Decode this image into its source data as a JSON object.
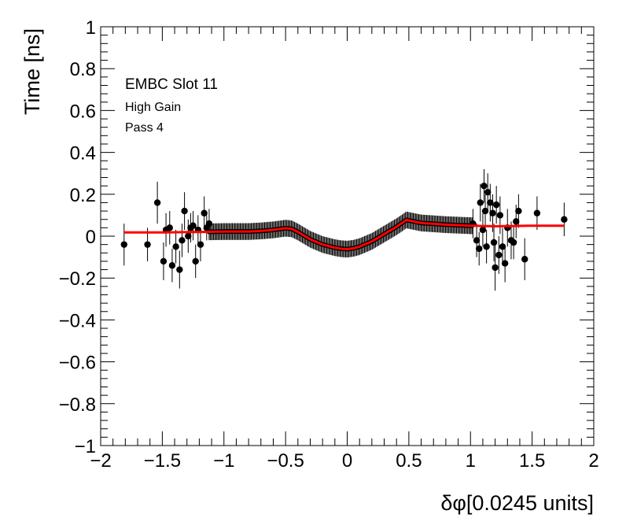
{
  "chart_data": {
    "type": "scatter",
    "xlabel": "δφ[0.0245 units]",
    "ylabel": "Time [ns]",
    "xlim": [
      -2,
      2
    ],
    "ylim": [
      -1,
      1
    ],
    "x_ticks": [
      "−2",
      "−1.5",
      "−1",
      "−0.5",
      "0",
      "0.5",
      "1",
      "1.5",
      "2"
    ],
    "y_ticks": [
      "−1",
      "−0.8",
      "−0.6",
      "−0.4",
      "−0.2",
      "0",
      "0.2",
      "0.4",
      "0.6",
      "0.8",
      "1"
    ],
    "annotations": [
      "EMBC Slot 11",
      "High Gain",
      "Pass 4"
    ],
    "grid": false,
    "legend": "none",
    "colors": {
      "points": "#000000",
      "fit": "#ff0000"
    },
    "series": [
      {
        "kind": "points",
        "points": [
          {
            "x": -1.81,
            "y": -0.04,
            "err": 0.1
          },
          {
            "x": -1.62,
            "y": -0.04,
            "err": 0.08
          },
          {
            "x": -1.54,
            "y": 0.16,
            "err": 0.1
          },
          {
            "x": -1.49,
            "y": -0.12,
            "err": 0.09
          },
          {
            "x": -1.47,
            "y": 0.03,
            "err": 0.08
          },
          {
            "x": -1.44,
            "y": 0.04,
            "err": 0.08
          },
          {
            "x": -1.42,
            "y": -0.14,
            "err": 0.08
          },
          {
            "x": -1.39,
            "y": -0.05,
            "err": 0.08
          },
          {
            "x": -1.36,
            "y": -0.16,
            "err": 0.09
          },
          {
            "x": -1.34,
            "y": -0.02,
            "err": 0.08
          },
          {
            "x": -1.32,
            "y": 0.12,
            "err": 0.09
          },
          {
            "x": -1.29,
            "y": 0.0,
            "err": 0.08
          },
          {
            "x": -1.27,
            "y": 0.04,
            "err": 0.07
          },
          {
            "x": -1.25,
            "y": 0.05,
            "err": 0.07
          },
          {
            "x": -1.23,
            "y": -0.12,
            "err": 0.08
          },
          {
            "x": -1.21,
            "y": 0.03,
            "err": 0.07
          },
          {
            "x": -1.19,
            "y": -0.04,
            "err": 0.08
          },
          {
            "x": -1.16,
            "y": 0.11,
            "err": 0.08
          },
          {
            "x": -1.14,
            "y": 0.04,
            "err": 0.06
          },
          {
            "x": -1.12,
            "y": 0.06,
            "err": 0.07
          },
          {
            "x": 1.02,
            "y": 0.06,
            "err": 0.07
          },
          {
            "x": 1.05,
            "y": -0.02,
            "err": 0.08
          },
          {
            "x": 1.07,
            "y": -0.06,
            "err": 0.08
          },
          {
            "x": 1.08,
            "y": 0.16,
            "err": 0.09
          },
          {
            "x": 1.1,
            "y": 0.03,
            "err": 0.08
          },
          {
            "x": 1.11,
            "y": 0.24,
            "err": 0.08
          },
          {
            "x": 1.12,
            "y": 0.12,
            "err": 0.08
          },
          {
            "x": 1.13,
            "y": -0.05,
            "err": 0.08
          },
          {
            "x": 1.14,
            "y": 0.21,
            "err": 0.09
          },
          {
            "x": 1.16,
            "y": 0.16,
            "err": 0.09
          },
          {
            "x": 1.18,
            "y": 0.11,
            "err": 0.09
          },
          {
            "x": 1.19,
            "y": -0.03,
            "err": 0.09
          },
          {
            "x": 1.2,
            "y": -0.15,
            "err": 0.11
          },
          {
            "x": 1.21,
            "y": 0.15,
            "err": 0.09
          },
          {
            "x": 1.23,
            "y": -0.09,
            "err": 0.09
          },
          {
            "x": 1.24,
            "y": 0.1,
            "err": 0.09
          },
          {
            "x": 1.26,
            "y": -0.05,
            "err": 0.09
          },
          {
            "x": 1.28,
            "y": -0.13,
            "err": 0.09
          },
          {
            "x": 1.3,
            "y": 0.04,
            "err": 0.09
          },
          {
            "x": 1.33,
            "y": -0.02,
            "err": 0.09
          },
          {
            "x": 1.35,
            "y": -0.03,
            "err": 0.08
          },
          {
            "x": 1.37,
            "y": 0.07,
            "err": 0.08
          },
          {
            "x": 1.39,
            "y": 0.12,
            "err": 0.08
          },
          {
            "x": 1.44,
            "y": -0.11,
            "err": 0.1
          },
          {
            "x": 1.54,
            "y": 0.11,
            "err": 0.08
          },
          {
            "x": 1.76,
            "y": 0.08,
            "err": 0.08
          }
        ]
      },
      {
        "kind": "dense-band",
        "x_range": [
          -1.12,
          1.02
        ],
        "x_step": 0.009,
        "err": 0.04
      },
      {
        "kind": "fit-curve",
        "x": [
          -1.81,
          -1.5,
          -1.2,
          -1.0,
          -0.8,
          -0.7,
          -0.6,
          -0.5,
          -0.45,
          -0.4,
          -0.3,
          -0.2,
          -0.1,
          -0.05,
          0.0,
          0.05,
          0.1,
          0.2,
          0.3,
          0.4,
          0.45,
          0.48,
          0.5,
          0.6,
          0.8,
          1.0,
          1.2,
          1.5,
          1.76
        ],
        "y": [
          0.018,
          0.018,
          0.02,
          0.022,
          0.022,
          0.025,
          0.03,
          0.038,
          0.035,
          0.02,
          -0.015,
          -0.04,
          -0.055,
          -0.06,
          -0.062,
          -0.058,
          -0.05,
          -0.025,
          0.01,
          0.045,
          0.065,
          0.078,
          0.075,
          0.063,
          0.055,
          0.05,
          0.047,
          0.05,
          0.05
        ]
      }
    ]
  }
}
